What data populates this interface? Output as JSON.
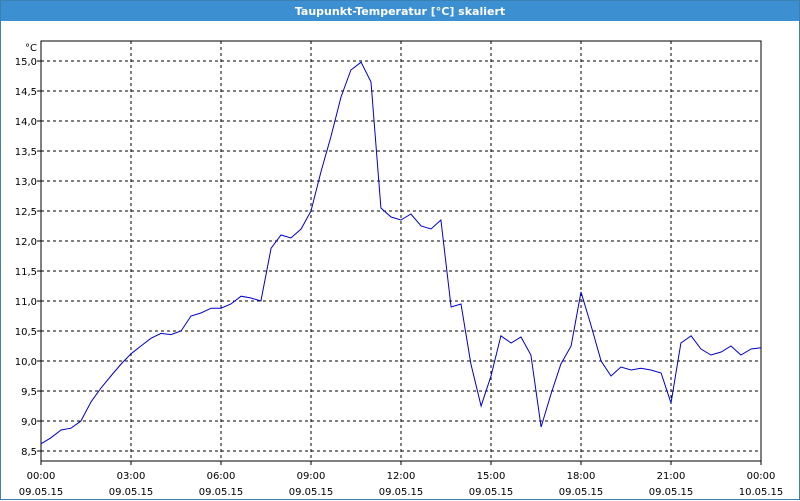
{
  "window": {
    "title": "Taupunkt-Temperatur [°C] skaliert"
  },
  "chart_data": {
    "type": "line",
    "title": "Taupunkt-Temperatur [°C] skaliert",
    "ylabel": "°C",
    "xlabel": "",
    "ylim": [
      8.5,
      15.0
    ],
    "xlim_hours": [
      0,
      24
    ],
    "grid": true,
    "line_color": "#0000cc",
    "y_ticks": [
      "8,5",
      "9,0",
      "9,5",
      "10,0",
      "10,5",
      "11,0",
      "11,5",
      "12,0",
      "12,5",
      "13,0",
      "13,5",
      "14,0",
      "14,5",
      "15,0"
    ],
    "x_ticks": [
      {
        "time": "00:00",
        "date": "09.05.15"
      },
      {
        "time": "03:00",
        "date": "09.05.15"
      },
      {
        "time": "06:00",
        "date": "09.05.15"
      },
      {
        "time": "09:00",
        "date": "09.05.15"
      },
      {
        "time": "12:00",
        "date": "09.05.15"
      },
      {
        "time": "15:00",
        "date": "09.05.15"
      },
      {
        "time": "18:00",
        "date": "09.05.15"
      },
      {
        "time": "21:00",
        "date": "09.05.15"
      },
      {
        "time": "00:00",
        "date": "10.05.15"
      }
    ],
    "series": [
      {
        "x": [
          0,
          0.33,
          0.67,
          1.0,
          1.33,
          1.67,
          2.0,
          2.33,
          2.67,
          3.0,
          3.33,
          3.67,
          4.0,
          4.33,
          4.67,
          5.0,
          5.33,
          5.67,
          6.0,
          6.33,
          6.67,
          7.0,
          7.33,
          7.67,
          8.0,
          8.33,
          8.67,
          9.0,
          9.33,
          9.67,
          10.0,
          10.33,
          10.67,
          11.0,
          11.33,
          11.67,
          12.0,
          12.33,
          12.67,
          13.0,
          13.33,
          13.67,
          14.0,
          14.33,
          14.67,
          15.0,
          15.33,
          15.67,
          16.0,
          16.33,
          16.67,
          17.0,
          17.33,
          17.67,
          18.0,
          18.33,
          18.67,
          19.0,
          19.33,
          19.67,
          20.0,
          20.33,
          20.67,
          21.0,
          21.33,
          21.67,
          22.0,
          22.33,
          22.67,
          23.0,
          23.33,
          23.67,
          24.0
        ],
        "y": [
          8.62,
          8.72,
          8.85,
          8.88,
          9.0,
          9.32,
          9.55,
          9.75,
          9.95,
          10.12,
          10.25,
          10.38,
          10.46,
          10.44,
          10.5,
          10.75,
          10.8,
          10.88,
          10.88,
          10.95,
          11.08,
          11.05,
          11.0,
          11.88,
          12.1,
          12.05,
          12.2,
          12.5,
          13.15,
          13.75,
          14.4,
          14.85,
          14.98,
          14.65,
          12.55,
          12.4,
          12.35,
          12.45,
          12.25,
          12.2,
          12.35,
          10.9,
          10.95,
          9.95,
          9.25,
          9.75,
          10.42,
          10.3,
          10.4,
          10.1,
          8.9,
          9.45,
          9.95,
          10.25,
          11.15,
          10.6,
          10.0,
          9.75,
          9.9,
          9.85,
          9.88,
          9.85,
          9.8,
          9.3,
          10.3,
          10.42,
          10.2,
          10.1,
          10.15,
          10.25,
          10.1,
          10.2,
          10.22
        ]
      }
    ]
  }
}
